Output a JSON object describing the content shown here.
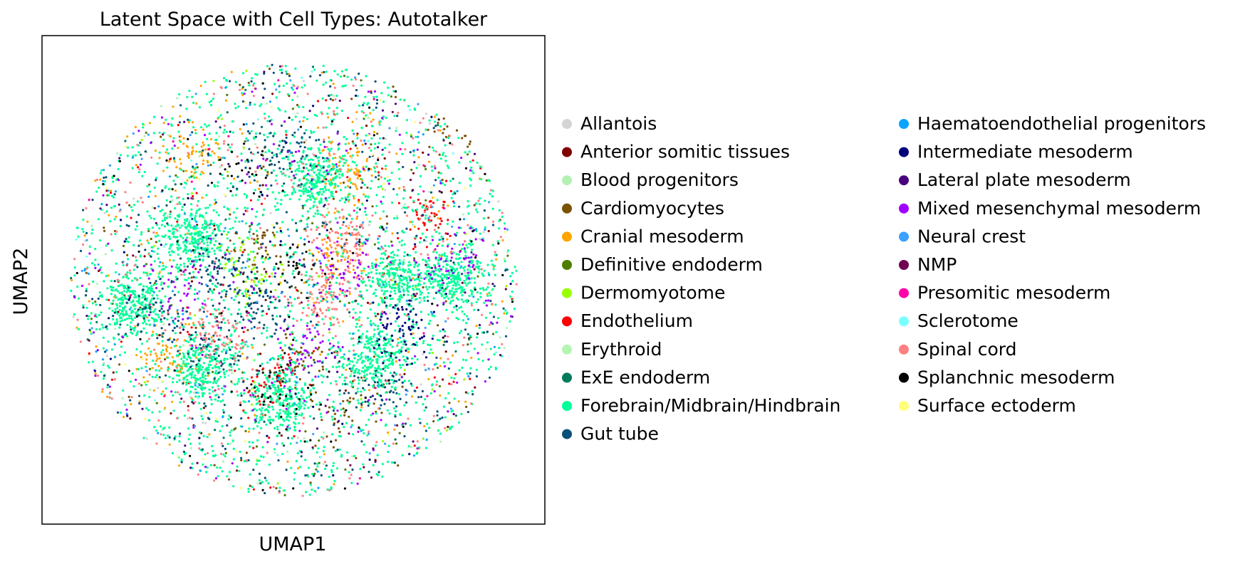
{
  "chart_data": {
    "type": "scatter",
    "title": "Latent Space with Cell Types: Autotalker",
    "xlabel": "UMAP1",
    "ylabel": "UMAP2",
    "xlim": [
      -1,
      1
    ],
    "ylim": [
      -1,
      1
    ],
    "grid": false,
    "legend_placement": "right, two columns",
    "series": [
      {
        "name": "Allantois",
        "color": "#d4d4d4",
        "weight": 2,
        "blobs": []
      },
      {
        "name": "Anterior somitic tissues",
        "color": "#800000",
        "weight": 2,
        "blobs": []
      },
      {
        "name": "Blood progenitors",
        "color": "#b4f0b4",
        "weight": 2,
        "blobs": []
      },
      {
        "name": "Cardiomyocytes",
        "color": "#7a5200",
        "weight": 10,
        "blobs": [
          [
            0.05,
            -0.35
          ],
          [
            -0.15,
            0.15
          ],
          [
            0.75,
            0.72
          ],
          [
            0.25,
            -0.55
          ]
        ]
      },
      {
        "name": "Cranial mesoderm",
        "color": "#ffa500",
        "weight": 16,
        "blobs": [
          [
            -0.45,
            0.6
          ],
          [
            0.25,
            0.5
          ],
          [
            -0.55,
            -0.35
          ],
          [
            0.18,
            0.1
          ]
        ]
      },
      {
        "name": "Definitive endoderm",
        "color": "#507d00",
        "weight": 3,
        "blobs": []
      },
      {
        "name": "Dermomyotome",
        "color": "#99ff00",
        "weight": 4,
        "blobs": [
          [
            -0.2,
            0.05
          ]
        ]
      },
      {
        "name": "Endothelium",
        "color": "#ff0000",
        "weight": 6,
        "blobs": [
          [
            -0.1,
            -0.45
          ],
          [
            0.6,
            0.3
          ]
        ]
      },
      {
        "name": "Erythroid",
        "color": "#b4f5b4",
        "weight": 2,
        "blobs": []
      },
      {
        "name": "ExE endoderm",
        "color": "#007a5a",
        "weight": 2,
        "blobs": []
      },
      {
        "name": "Forebrain/Midbrain/Hindbrain",
        "color": "#00ff99",
        "weight": 130,
        "blobs": [
          [
            -0.45,
            0.2
          ],
          [
            0.45,
            0.0
          ],
          [
            -0.05,
            -0.55
          ],
          [
            0.35,
            -0.35
          ],
          [
            -0.4,
            -0.4
          ],
          [
            0.1,
            0.45
          ],
          [
            -0.7,
            -0.1
          ],
          [
            0.7,
            0.0
          ]
        ]
      },
      {
        "name": "Gut tube",
        "color": "#0b5079",
        "weight": 24,
        "blobs": [
          [
            -0.05,
            0.55
          ],
          [
            -0.35,
            0.05
          ],
          [
            -0.15,
            -0.1
          ],
          [
            -0.6,
            -0.15
          ],
          [
            0.4,
            -0.5
          ],
          [
            -0.35,
            -0.3
          ]
        ]
      },
      {
        "name": "Haematoendothelial progenitors",
        "color": "#0aa5ff",
        "weight": 3,
        "blobs": []
      },
      {
        "name": "Intermediate mesoderm",
        "color": "#00007a",
        "weight": 4,
        "blobs": [
          [
            0.48,
            -0.22
          ]
        ]
      },
      {
        "name": "Lateral plate mesoderm",
        "color": "#4b0080",
        "weight": 3,
        "blobs": []
      },
      {
        "name": "Mixed mesenchymal mesoderm",
        "color": "#a000ff",
        "weight": 12,
        "blobs": [
          [
            0.25,
            0.05
          ],
          [
            0.05,
            -0.3
          ],
          [
            0.7,
            0.1
          ],
          [
            -0.5,
            -0.05
          ]
        ]
      },
      {
        "name": "Neural crest",
        "color": "#3ca0ff",
        "weight": 4,
        "blobs": []
      },
      {
        "name": "NMP",
        "color": "#700050",
        "weight": 1,
        "blobs": []
      },
      {
        "name": "Presomitic mesoderm",
        "color": "#ff00aa",
        "weight": 1,
        "blobs": []
      },
      {
        "name": "Sclerotome",
        "color": "#7affff",
        "weight": 1,
        "blobs": []
      },
      {
        "name": "Spinal cord",
        "color": "#ff8080",
        "weight": 18,
        "blobs": [
          [
            0.15,
            -0.08
          ],
          [
            -0.35,
            -0.25
          ],
          [
            0.2,
            0.18
          ]
        ]
      },
      {
        "name": "Splanchnic mesoderm",
        "color": "#000000",
        "weight": 6,
        "blobs": [
          [
            -0.1,
            -0.5
          ],
          [
            -0.2,
            0.5
          ],
          [
            0.0,
            0.05
          ]
        ]
      },
      {
        "name": "Surface ectoderm",
        "color": "#ffff7a",
        "weight": 2,
        "blobs": []
      }
    ]
  }
}
